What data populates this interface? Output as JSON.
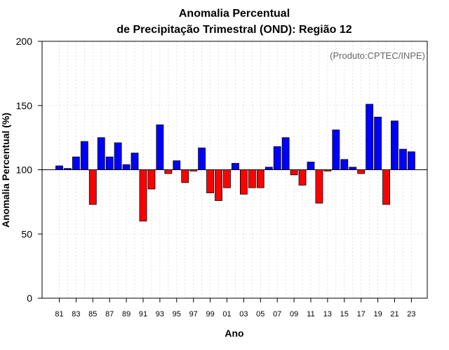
{
  "chart_data": {
    "type": "bar",
    "title": "Anomalia Percentual",
    "subtitle": "de Precipitação Trimestral (OND): Região 12",
    "xlabel": "Ano",
    "ylabel": "Anomalia Percentual (%)",
    "source_note": "(Produto:CPTEC/INPE)",
    "ylim": [
      0,
      200
    ],
    "yticks": [
      "0",
      "50",
      "100",
      "150",
      "200"
    ],
    "baseline": 100,
    "grid": true,
    "categories": [
      "81",
      "82",
      "83",
      "84",
      "85",
      "86",
      "87",
      "88",
      "89",
      "90",
      "91",
      "92",
      "93",
      "94",
      "95",
      "96",
      "97",
      "98",
      "99",
      "00",
      "01",
      "02",
      "03",
      "04",
      "05",
      "06",
      "07",
      "08",
      "09",
      "10",
      "11",
      "12",
      "13",
      "14",
      "15",
      "16",
      "17",
      "18",
      "19",
      "20",
      "21",
      "22",
      "23"
    ],
    "xtick_labels": [
      "81",
      "83",
      "85",
      "87",
      "89",
      "91",
      "93",
      "95",
      "97",
      "99",
      "01",
      "03",
      "05",
      "07",
      "09",
      "11",
      "13",
      "15",
      "17",
      "19",
      "21",
      "23"
    ],
    "values": [
      103,
      101,
      110,
      122,
      73,
      125,
      110,
      121,
      104,
      113,
      60,
      85,
      135,
      97,
      107,
      90,
      99,
      117,
      82,
      76,
      86,
      105,
      81,
      86,
      86,
      102,
      118,
      125,
      96,
      88,
      106,
      74,
      99,
      131,
      108,
      102,
      97,
      151,
      141,
      73,
      138,
      116,
      114
    ],
    "colors": {
      "above": "#0000ff",
      "below": "#ff0000",
      "outline": "#000000",
      "grid": "#d9d9d9"
    }
  }
}
